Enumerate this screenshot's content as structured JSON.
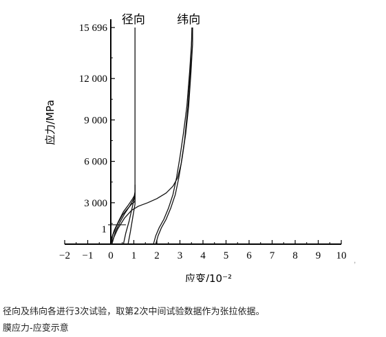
{
  "chart_data": {
    "type": "line",
    "xlabel": "应变/10⁻²",
    "ylabel": "应力/MPa",
    "xlim": [
      -2,
      10
    ],
    "ylim": [
      0,
      16000
    ],
    "xticks": [
      {
        "value": -2,
        "label": "−2"
      },
      {
        "value": -1,
        "label": "−1"
      },
      {
        "value": 0,
        "label": "0"
      },
      {
        "value": 1,
        "label": "1"
      },
      {
        "value": 2,
        "label": "2"
      },
      {
        "value": 3,
        "label": "3"
      },
      {
        "value": 4,
        "label": "4"
      },
      {
        "value": 5,
        "label": "5"
      },
      {
        "value": 6,
        "label": "6"
      },
      {
        "value": 7,
        "label": "7"
      },
      {
        "value": 8,
        "label": "8"
      },
      {
        "value": 9,
        "label": "9"
      },
      {
        "value": 10,
        "label": "10"
      }
    ],
    "yticks": [
      {
        "value": 3000,
        "label": "3 000"
      },
      {
        "value": 6000,
        "label": "6 000"
      },
      {
        "value": 9000,
        "label": "9 000"
      },
      {
        "value": 12000,
        "label": "12 000"
      },
      {
        "value": 15696,
        "label": "15 696"
      }
    ],
    "extra_y_label": {
      "value": 1,
      "y": 1100
    },
    "grid": false,
    "series": [
      {
        "name": "径向",
        "label_anchor": [
          1.1,
          15696
        ],
        "curves": [
          [
            [
              0,
              0
            ],
            [
              0.1,
              700
            ],
            [
              0.3,
              1500
            ],
            [
              0.5,
              2100
            ],
            [
              0.7,
              2500
            ],
            [
              0.9,
              2900
            ],
            [
              1.05,
              3100
            ],
            [
              1.05,
              4300
            ],
            [
              1.05,
              15696
            ]
          ],
          [
            [
              0,
              250
            ],
            [
              0.15,
              1000
            ],
            [
              0.35,
              1700
            ],
            [
              0.55,
              2350
            ],
            [
              0.75,
              2800
            ],
            [
              0.95,
              3300
            ],
            [
              1.05,
              3600
            ],
            [
              1.05,
              4300
            ]
          ],
          [
            [
              0.05,
              0
            ],
            [
              0.2,
              900
            ],
            [
              0.4,
              1600
            ],
            [
              0.6,
              2200
            ],
            [
              0.8,
              2700
            ],
            [
              1.0,
              3300
            ],
            [
              1.05,
              3800
            ],
            [
              1.05,
              4300
            ]
          ],
          [
            [
              0.55,
              0
            ],
            [
              0.65,
              800
            ],
            [
              0.8,
              1700
            ],
            [
              0.95,
              2800
            ],
            [
              1.05,
              3600
            ],
            [
              1.05,
              4300
            ]
          ],
          [
            [
              0.75,
              0
            ],
            [
              0.85,
              900
            ],
            [
              0.95,
              1900
            ],
            [
              1.05,
              2900
            ],
            [
              1.05,
              4300
            ]
          ]
        ]
      },
      {
        "name": "纬向",
        "label_anchor": [
          3.5,
          15696
        ],
        "curves": [
          [
            [
              0,
              0
            ],
            [
              0.3,
              1100
            ],
            [
              0.6,
              1900
            ],
            [
              0.9,
              2450
            ],
            [
              1.2,
              2750
            ],
            [
              1.6,
              3000
            ],
            [
              2.0,
              3300
            ],
            [
              2.4,
              3700
            ],
            [
              2.7,
              4200
            ],
            [
              2.9,
              4800
            ],
            [
              3.05,
              5800
            ],
            [
              3.2,
              7500
            ],
            [
              3.35,
              10000
            ],
            [
              3.45,
              12500
            ],
            [
              3.5,
              14500
            ],
            [
              3.55,
              15696
            ]
          ],
          [
            [
              1.85,
              0
            ],
            [
              1.95,
              600
            ],
            [
              2.1,
              1200
            ],
            [
              2.3,
              1800
            ],
            [
              2.5,
              2600
            ],
            [
              2.7,
              3600
            ],
            [
              2.85,
              4800
            ],
            [
              3.0,
              6300
            ],
            [
              3.15,
              8000
            ],
            [
              3.3,
              10000
            ],
            [
              3.42,
              12500
            ],
            [
              3.5,
              14500
            ],
            [
              3.52,
              15696
            ]
          ],
          [
            [
              1.95,
              0
            ],
            [
              2.05,
              600
            ],
            [
              2.2,
              1200
            ],
            [
              2.4,
              1800
            ],
            [
              2.6,
              2600
            ],
            [
              2.8,
              3600
            ],
            [
              2.95,
              4800
            ],
            [
              3.1,
              6300
            ],
            [
              3.25,
              8000
            ],
            [
              3.38,
              10000
            ],
            [
              3.48,
              12500
            ],
            [
              3.55,
              14500
            ],
            [
              3.55,
              15696
            ]
          ]
        ]
      }
    ]
  },
  "caption": {
    "line1": "径向及纬向各进行3次试验，取第2次中间试验数据作为张拉依据。",
    "line2": "膜应力-应变示意"
  }
}
